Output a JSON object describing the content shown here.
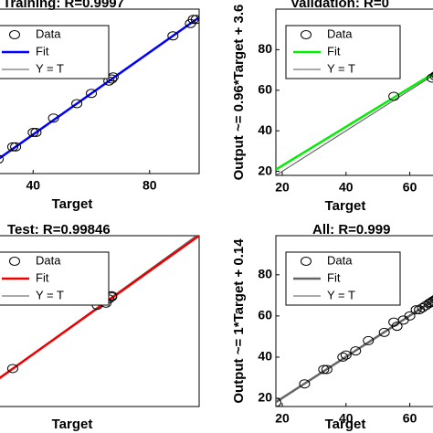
{
  "chart_data": [
    {
      "type": "scatter",
      "title": "Training: R=0.9997",
      "xlabel": "Target",
      "legend": "upper left",
      "xlim": [
        28,
        97
      ],
      "ylim": [
        21,
        101
      ],
      "xticks": [
        40,
        80
      ],
      "series": [
        {
          "name": "Data",
          "color": "#000000",
          "x": [
            28,
            33,
            34,
            40,
            41,
            47,
            55,
            60,
            66,
            67,
            67.5,
            88,
            94,
            95,
            96
          ],
          "values": [
            28,
            34,
            34,
            41,
            41,
            48,
            55,
            60,
            66,
            67,
            68,
            88,
            94,
            96,
            96
          ]
        },
        {
          "name": "Fit",
          "color": "#0000ff",
          "x": [
            28,
            97
          ],
          "values": [
            28,
            97
          ]
        },
        {
          "name": "Y = T",
          "color": "#555555",
          "x": [
            28,
            97
          ],
          "values": [
            28,
            97
          ]
        }
      ]
    },
    {
      "type": "scatter",
      "title": "Validation: R=0",
      "xlabel": "Target",
      "ylabel": "Output ~= 0.96*Target + 3.6",
      "legend": "upper left",
      "xlim": [
        18,
        69
      ],
      "ylim": [
        18,
        100
      ],
      "xticks": [
        20,
        40,
        60
      ],
      "yticks": [
        20,
        40,
        60,
        80
      ],
      "series": [
        {
          "name": "Data",
          "color": "#000000",
          "x": [
            55,
            67,
            68,
            68.5
          ],
          "values": [
            57,
            66,
            67,
            67.5
          ]
        },
        {
          "name": "Fit",
          "color": "#00ee00",
          "x": [
            18,
            69
          ],
          "values": [
            20.9,
            69.8
          ]
        },
        {
          "name": "Y = T",
          "color": "#555555",
          "x": [
            18,
            69
          ],
          "values": [
            18,
            69
          ]
        }
      ]
    },
    {
      "type": "scatter",
      "title": "Test: R=0.99846",
      "xlabel": "Target",
      "legend": "upper left",
      "xlim": [
        28,
        97
      ],
      "ylim": [
        15,
        96
      ],
      "series": [
        {
          "name": "Data",
          "color": "#000000",
          "x": [
            33,
            62,
            65,
            66,
            67,
            67
          ],
          "values": [
            33,
            63,
            64,
            66,
            67,
            67.5
          ]
        },
        {
          "name": "Fit",
          "color": "#ee0000",
          "x": [
            28,
            97
          ],
          "values": [
            28,
            96
          ]
        },
        {
          "name": "Y = T",
          "color": "#555555",
          "x": [
            28,
            97
          ],
          "values": [
            28,
            97
          ]
        }
      ]
    },
    {
      "type": "scatter",
      "title": "All: R=0.999",
      "xlabel": "Target",
      "ylabel": "Output ~= 1*Target + 0.14",
      "legend": "upper left",
      "xlim": [
        18,
        69
      ],
      "ylim": [
        16,
        99
      ],
      "xticks": [
        20,
        40,
        60
      ],
      "yticks": [
        20,
        40,
        60,
        80
      ],
      "series": [
        {
          "name": "Data",
          "color": "#000000",
          "x": [
            18,
            27,
            33,
            34,
            39,
            40,
            43,
            47,
            52,
            55,
            56,
            58,
            60,
            62,
            63,
            64,
            65,
            66,
            66.5,
            67,
            67.5,
            68,
            68.5
          ],
          "values": [
            18,
            27,
            34,
            34,
            40,
            41,
            43,
            48,
            52,
            57,
            55,
            58,
            60,
            63,
            63,
            64,
            65,
            66,
            66.5,
            67,
            67.5,
            68,
            68.5
          ]
        },
        {
          "name": "Fit",
          "color": "#666666",
          "x": [
            18,
            69
          ],
          "values": [
            18.14,
            69.14
          ]
        },
        {
          "name": "Y = T",
          "color": "#555555",
          "x": [
            18,
            69
          ],
          "values": [
            18,
            69
          ]
        }
      ]
    }
  ]
}
